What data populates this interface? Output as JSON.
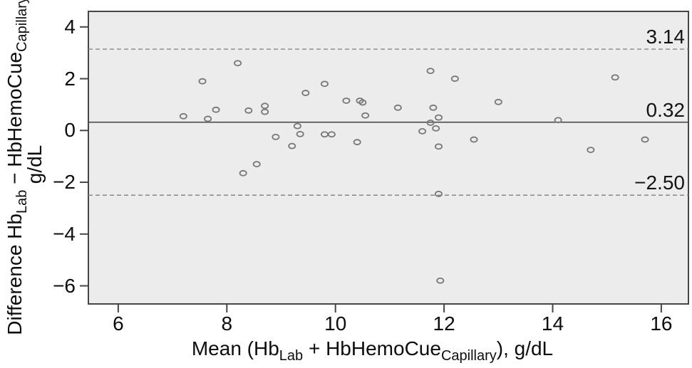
{
  "figure": {
    "kind": "Bland-Altman agreement plot",
    "colors": {
      "outer_bg": "#ffffff",
      "plot_bg": "#ececec",
      "frame": "#464646",
      "mean_line": "#4a4a4a",
      "limit_line": "#868686",
      "point_stroke": "#787878",
      "text": "#0d0d0d"
    },
    "x_label_parts": {
      "t1": "Mean (Hb",
      "sub1": "Lab",
      "t2": " + HbHemoCue",
      "sub2": "Capillary",
      "t3": "), g/dL"
    },
    "y_label_line1_parts": {
      "t1": "Difference Hb",
      "sub1": "Lab",
      "t2": " − HbHemoCue",
      "sub2": "Capillary",
      "t3": ","
    },
    "y_label_line2": "g/dL"
  },
  "chart_data": {
    "type": "scatter",
    "title": "",
    "xlabel": "Mean (Hb_Lab + HbHemoCue_Capillary), g/dL",
    "ylabel": "Difference Hb_Lab − HbHemoCue_Capillary, g/dL",
    "xlim": [
      5.45,
      16.5
    ],
    "ylim": [
      -6.7,
      4.6
    ],
    "grid": false,
    "legend_position": "none",
    "x_ticks": [
      {
        "v": 6,
        "label": "6"
      },
      {
        "v": 8,
        "label": "8"
      },
      {
        "v": 10,
        "label": "10"
      },
      {
        "v": 12,
        "label": "12"
      },
      {
        "v": 14,
        "label": "14"
      },
      {
        "v": 16,
        "label": "16"
      }
    ],
    "y_ticks": [
      {
        "v": 4,
        "label": "4"
      },
      {
        "v": 2,
        "label": "2"
      },
      {
        "v": 0,
        "label": "0"
      },
      {
        "v": -2,
        "label": "−2"
      },
      {
        "v": -4,
        "label": "−4"
      },
      {
        "v": -6,
        "label": "−6"
      }
    ],
    "reference_lines": [
      {
        "v": 3.14,
        "label": "3.14",
        "style": "dashed",
        "meaning": "upper limit of agreement"
      },
      {
        "v": 0.32,
        "label": "0.32",
        "style": "solid",
        "meaning": "mean difference"
      },
      {
        "v": -2.5,
        "label": "−2.50",
        "style": "dashed",
        "meaning": "lower limit of agreement"
      }
    ],
    "points": [
      [
        7.2,
        0.55
      ],
      [
        7.55,
        1.9
      ],
      [
        7.65,
        0.45
      ],
      [
        7.8,
        0.8
      ],
      [
        8.2,
        2.6
      ],
      [
        8.3,
        -1.65
      ],
      [
        8.4,
        0.77
      ],
      [
        8.55,
        -1.3
      ],
      [
        8.7,
        0.95
      ],
      [
        8.7,
        0.72
      ],
      [
        8.9,
        -0.25
      ],
      [
        9.2,
        -0.6
      ],
      [
        9.3,
        0.17
      ],
      [
        9.35,
        -0.14
      ],
      [
        9.45,
        1.45
      ],
      [
        9.8,
        1.8
      ],
      [
        9.8,
        -0.15
      ],
      [
        9.93,
        -0.15
      ],
      [
        10.2,
        1.15
      ],
      [
        10.4,
        -0.45
      ],
      [
        10.45,
        1.15
      ],
      [
        10.5,
        1.08
      ],
      [
        10.55,
        0.58
      ],
      [
        11.15,
        0.88
      ],
      [
        11.6,
        -0.03
      ],
      [
        11.75,
        2.3
      ],
      [
        11.75,
        0.3
      ],
      [
        11.8,
        0.88
      ],
      [
        11.85,
        0.08
      ],
      [
        11.9,
        0.5
      ],
      [
        11.9,
        -0.62
      ],
      [
        11.9,
        -2.45
      ],
      [
        11.93,
        -5.8
      ],
      [
        12.2,
        2.0
      ],
      [
        12.55,
        -0.35
      ],
      [
        13.0,
        1.1
      ],
      [
        14.1,
        0.4
      ],
      [
        14.7,
        -0.75
      ],
      [
        15.15,
        2.05
      ],
      [
        15.7,
        -0.35
      ]
    ]
  }
}
